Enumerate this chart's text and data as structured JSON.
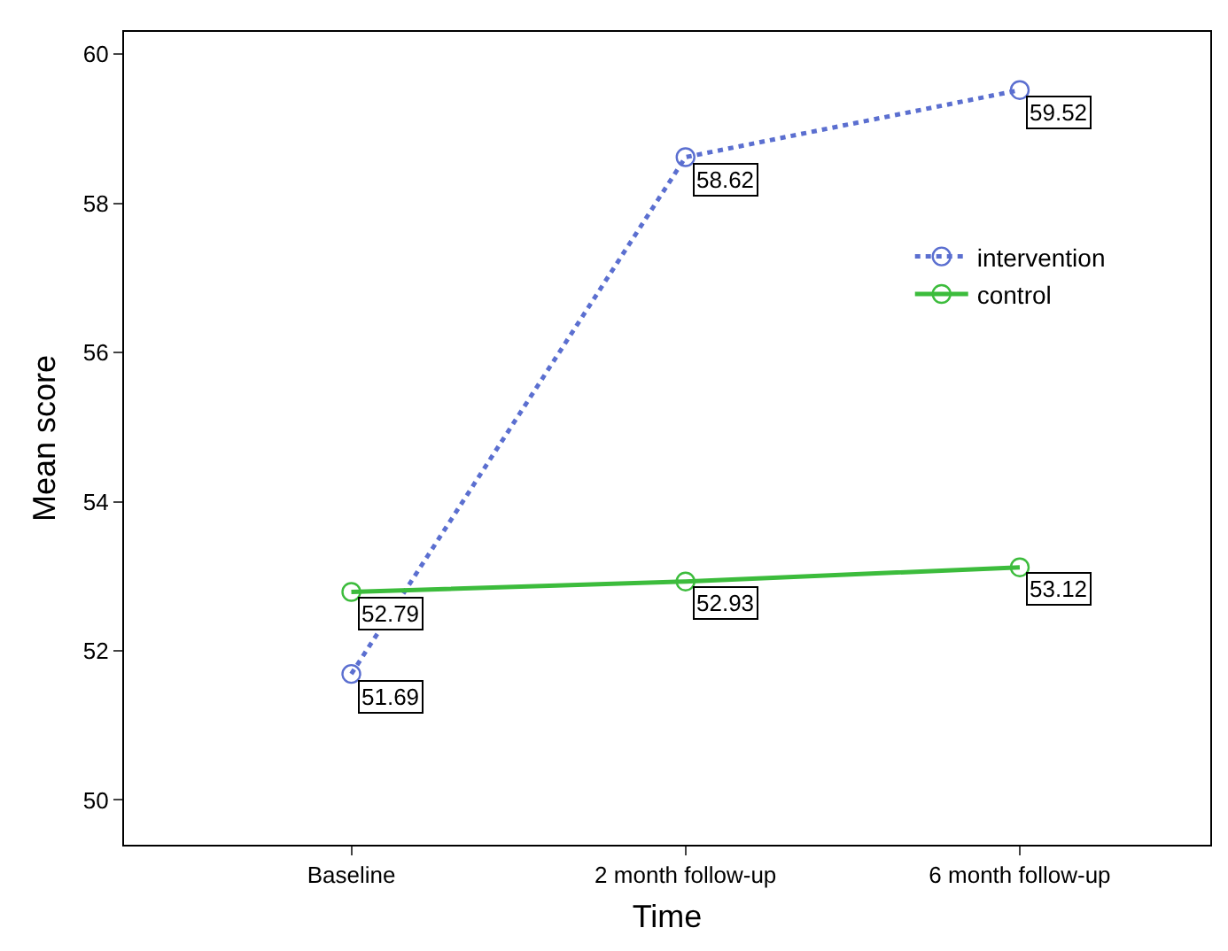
{
  "chart_data": {
    "type": "line",
    "xlabel": "Time",
    "ylabel": "Mean score",
    "categories": [
      "Baseline",
      "2 month follow-up",
      "6 month follow-up"
    ],
    "series": [
      {
        "name": "intervention",
        "color": "#5b6fd0",
        "values": [
          51.69,
          58.62,
          59.52
        ],
        "line_style": "dotted"
      },
      {
        "name": "control",
        "color": "#3cbc3c",
        "values": [
          52.79,
          52.93,
          53.12
        ],
        "line_style": "solid"
      }
    ],
    "ylim": [
      49.4,
      60.3
    ],
    "yticks": [
      50,
      52,
      54,
      56,
      58,
      60
    ],
    "data_labels": true,
    "marker": "circle",
    "legend": "right"
  }
}
